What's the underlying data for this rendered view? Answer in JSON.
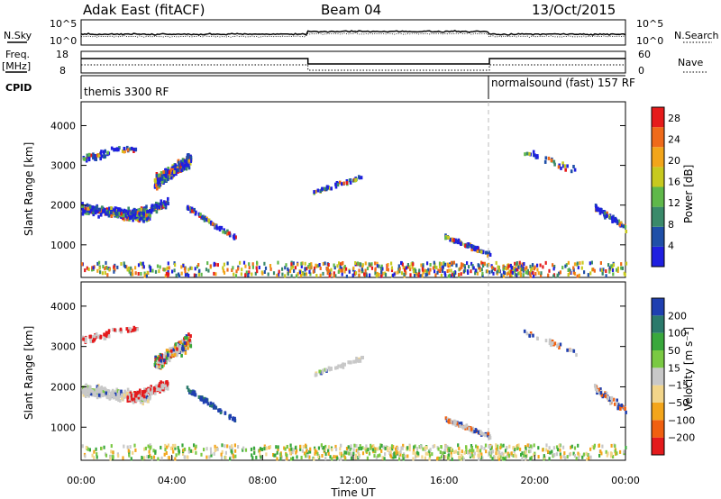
{
  "header": {
    "station": "Adak East (fitACF)",
    "beam": "Beam 04",
    "date": "13/Oct/2015"
  },
  "panels": {
    "nsky": {
      "label": "N.Sky",
      "right_label": "N.Search",
      "left_ticks": [
        "10^5",
        "10^0"
      ],
      "right_ticks": [
        "10^5",
        "10^0"
      ]
    },
    "freq": {
      "label_line1": "Freq.",
      "label_line2": "[MHz]",
      "right_label": "Nave",
      "left_ticks": [
        "18",
        "8"
      ],
      "right_ticks": [
        "60",
        "0"
      ]
    },
    "cpid": {
      "label": "CPID",
      "segments": [
        "themis 3300 RF",
        "normalsound (fast) 157 RF"
      ]
    }
  },
  "colors": {
    "power": [
      "#1f1fe0",
      "#1f4fa8",
      "#3a8a6a",
      "#5fb84a",
      "#c7c91f",
      "#f2a51a",
      "#ef6a1a",
      "#e61b1b"
    ],
    "velocity": [
      "#e41a1c",
      "#f06010",
      "#f3a51b",
      "#f2d58a",
      "#c8c8c8",
      "#7ac943",
      "#39a83c",
      "#2b7a6b",
      "#1f3fb0"
    ]
  },
  "chart_data": [
    {
      "type": "heatmap",
      "title": "Power",
      "ylabel": "Slant Range [km]",
      "colorbar_label": "Power [dB]",
      "colorbar_ticks": [
        4,
        8,
        12,
        16,
        20,
        24,
        28
      ],
      "colorbar_range": [
        0,
        30
      ],
      "x_ticks": [
        "00:00",
        "04:00",
        "08:00",
        "12:00",
        "16:00",
        "20:00",
        "00:00"
      ],
      "x_range_hours": [
        0,
        24
      ],
      "y_ticks": [
        1000,
        2000,
        3000,
        4000
      ],
      "y_range_km": [
        180,
        4600
      ],
      "mode_change_hour": 18.0
    },
    {
      "type": "heatmap",
      "title": "Velocity",
      "ylabel": "Slant Range [km]",
      "xlabel": "Time UT",
      "colorbar_label": "Velocity [m s⁻¹]",
      "colorbar_ticks": [
        -200,
        -100,
        -50,
        -15,
        15,
        50,
        100,
        200
      ],
      "x_ticks": [
        "00:00",
        "04:00",
        "08:00",
        "12:00",
        "16:00",
        "20:00",
        "00:00"
      ],
      "x_range_hours": [
        0,
        24
      ],
      "y_ticks": [
        1000,
        2000,
        3000,
        4000
      ],
      "y_range_km": [
        180,
        4600
      ],
      "mode_change_hour": 18.0
    }
  ]
}
